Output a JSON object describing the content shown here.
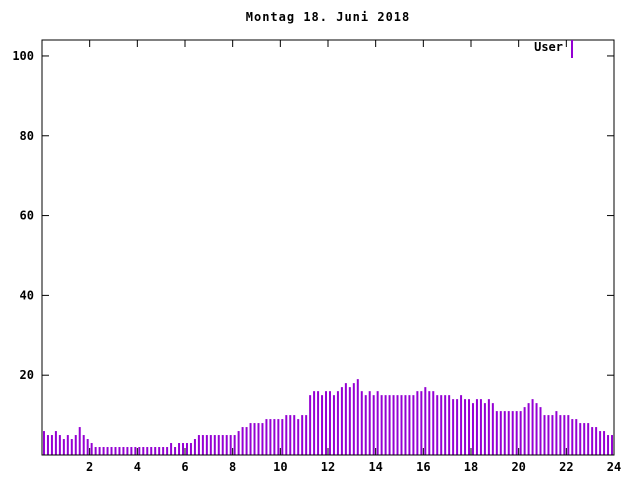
{
  "chart_data": {
    "type": "bar",
    "title": "Montag 18. Juni 2018",
    "legend": {
      "label": "User",
      "position": "top-right"
    },
    "xlabel": "",
    "ylabel": "",
    "xlim": [
      0,
      24
    ],
    "ylim": [
      0,
      104
    ],
    "x_ticks": [
      2,
      4,
      6,
      8,
      10,
      12,
      14,
      16,
      18,
      20,
      22,
      24
    ],
    "y_ticks": [
      20,
      40,
      60,
      80,
      100
    ],
    "grid": false,
    "points_per_hour": 6,
    "x_start_hour": 0,
    "values": [
      6,
      5,
      5,
      6,
      5,
      4,
      5,
      4,
      5,
      7,
      5,
      4,
      3,
      2,
      2,
      2,
      2,
      2,
      2,
      2,
      2,
      2,
      2,
      2,
      2,
      2,
      2,
      2,
      2,
      2,
      2,
      2,
      3,
      2,
      3,
      3,
      3,
      3,
      4,
      5,
      5,
      5,
      5,
      5,
      5,
      5,
      5,
      5,
      5,
      6,
      7,
      7,
      8,
      8,
      8,
      8,
      9,
      9,
      9,
      9,
      9,
      10,
      10,
      10,
      9,
      10,
      10,
      15,
      16,
      16,
      15,
      16,
      16,
      15,
      16,
      17,
      18,
      17,
      18,
      19,
      16,
      15,
      16,
      15,
      16,
      15,
      15,
      15,
      15,
      15,
      15,
      15,
      15,
      15,
      16,
      16,
      17,
      16,
      16,
      15,
      15,
      15,
      15,
      14,
      14,
      15,
      14,
      14,
      13,
      14,
      14,
      13,
      14,
      13,
      11,
      11,
      11,
      11,
      11,
      11,
      11,
      12,
      13,
      14,
      13,
      12,
      10,
      10,
      10,
      11,
      10,
      10,
      10,
      9,
      9,
      8,
      8,
      8,
      7,
      7,
      6,
      6,
      5,
      5
    ],
    "colors": {
      "bars": "#9400d3",
      "axis": "#000000",
      "text": "#000000",
      "background": "#ffffff"
    }
  }
}
